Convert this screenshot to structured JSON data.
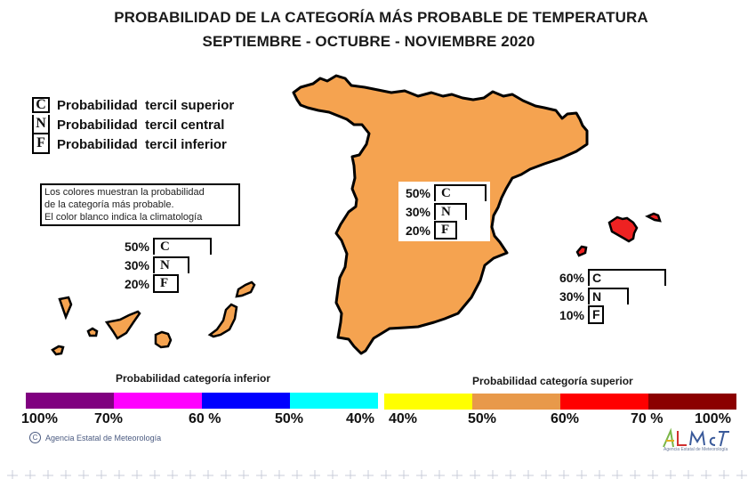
{
  "title": {
    "line1": "PROBABILIDAD DE LA CATEGORÍA MÁS PROBABLE DE  TEMPERATURA",
    "line2": "SEPTIEMBRE - OCTUBRE - NOVIEMBRE 2020"
  },
  "tercil_legend": [
    {
      "code": "C",
      "label": "Probabilidad  tercil superior"
    },
    {
      "code": "N",
      "label": "Probabilidad  tercil central"
    },
    {
      "code": "F",
      "label": "Probabilidad  tercil inferior"
    }
  ],
  "note": {
    "lines": [
      "Los colores muestran la probabilidad",
      "de la categoría más probable.",
      "El color blanco indica la climatología"
    ]
  },
  "regions": {
    "peninsula": {
      "name": "Península",
      "fill_color": "#f5a350",
      "category": "superior 50-60%",
      "bars": [
        {
          "code": "C",
          "value": 50,
          "label": "50%"
        },
        {
          "code": "N",
          "value": 30,
          "label": "30%"
        },
        {
          "code": "F",
          "value": 20,
          "label": "20%"
        }
      ]
    },
    "canarias": {
      "name": "Canarias",
      "fill_color": "#f5a350",
      "category": "superior 50-60%",
      "bars": [
        {
          "code": "C",
          "value": 50,
          "label": "50%"
        },
        {
          "code": "N",
          "value": 30,
          "label": "30%"
        },
        {
          "code": "F",
          "value": 20,
          "label": "20%"
        }
      ]
    },
    "baleares": {
      "name": "Baleares",
      "fill_color": "#ee2222",
      "category": "superior 60-70%",
      "bars": [
        {
          "code": "C",
          "value": 60,
          "label": "60%"
        },
        {
          "code": "N",
          "value": 30,
          "label": "30%"
        },
        {
          "code": "F",
          "value": 10,
          "label": "10%"
        }
      ]
    }
  },
  "scale_inferior": {
    "title": "Probabilidad categoría inferior",
    "colors": [
      "#800080",
      "#ff00ff",
      "#0000ff",
      "#00ffff"
    ],
    "labels": [
      "100%",
      "70%",
      "60 %",
      "50%",
      "40%"
    ]
  },
  "scale_superior": {
    "title": "Probabilidad categoría superior",
    "colors": [
      "#ffff00",
      "#e8994a",
      "#ff0000",
      "#8b0000"
    ],
    "labels": [
      "40%",
      "50%",
      "60%",
      "70 %",
      "100%"
    ]
  },
  "credit": {
    "copyright_symbol": "C",
    "text": "Agencia Estatal de Meteorología"
  },
  "logo": {
    "text": "AEMET",
    "subtext": "Agencia Estatal de Meteorología"
  },
  "icons": {
    "copyright": "copyright-icon",
    "logo": "aemet-logo-icon"
  }
}
